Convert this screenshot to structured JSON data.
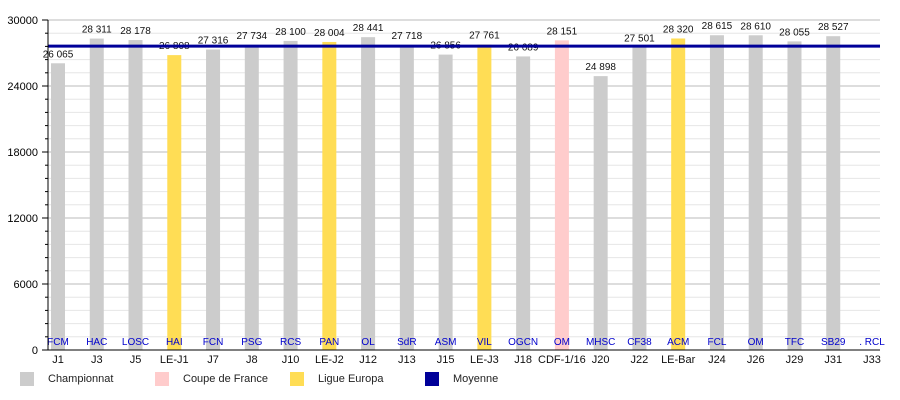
{
  "chart_data": {
    "type": "bar",
    "ylim": [
      0,
      30000
    ],
    "yticks": [
      "0",
      "6000",
      "12000",
      "18000",
      "24000",
      "30000"
    ],
    "yticks_values": [
      0,
      6000,
      12000,
      18000,
      24000,
      30000
    ],
    "categories": [
      "J1",
      "J3",
      "J5",
      "LE-J1",
      "J7",
      "J8",
      "J10",
      "LE-J2",
      "J12",
      "J13",
      "J15",
      "LE-J3",
      "J18",
      "CDF-1/16",
      "J20",
      "J22",
      "LE-Bar",
      "J24",
      "J26",
      "J29",
      "J31",
      "J33"
    ],
    "opponents": [
      "FCM",
      "HAC",
      "LOSC",
      "HAI",
      "FCN",
      "PSG",
      "RCS",
      "PAN",
      "OL",
      "SdR",
      "ASM",
      "VIL",
      "OGCN",
      "OM",
      "MHSC",
      "CF38",
      "ACM",
      "FCL",
      "OM",
      "TFC",
      "SB29",
      ". RCL"
    ],
    "values": [
      26065,
      28311,
      28178,
      26808,
      27316,
      27734,
      28100,
      28004,
      28441,
      27718,
      26856,
      27761,
      26689,
      28151,
      24898,
      27501,
      28320,
      28615,
      28610,
      28055,
      28527,
      null
    ],
    "value_labels": [
      "26 065",
      "28 311",
      "28 178",
      "26 808",
      "27 316",
      "27 734",
      "28 100",
      "28 004",
      "28 441",
      "27 718",
      "26 856",
      "27 761",
      "26 689",
      "28 151",
      "24 898",
      "27 501",
      "28 320",
      "28 615",
      "28 610",
      "28 055",
      "28 527",
      ""
    ],
    "competition": [
      "C",
      "C",
      "C",
      "E",
      "C",
      "C",
      "C",
      "E",
      "C",
      "C",
      "C",
      "E",
      "C",
      "F",
      "C",
      "C",
      "E",
      "C",
      "C",
      "C",
      "C",
      "C"
    ],
    "average": 27620,
    "colors": {
      "C": "#cccccc",
      "F": "#ffcccc",
      "E": "#ffdd55",
      "avg": "#000099",
      "opp": "#0000cc"
    },
    "legend": [
      {
        "key": "C",
        "label": "Championnat"
      },
      {
        "key": "F",
        "label": "Coupe de France"
      },
      {
        "key": "E",
        "label": "Ligue Europa"
      },
      {
        "key": "avg",
        "label": "Moyenne"
      }
    ],
    "grid": true
  }
}
